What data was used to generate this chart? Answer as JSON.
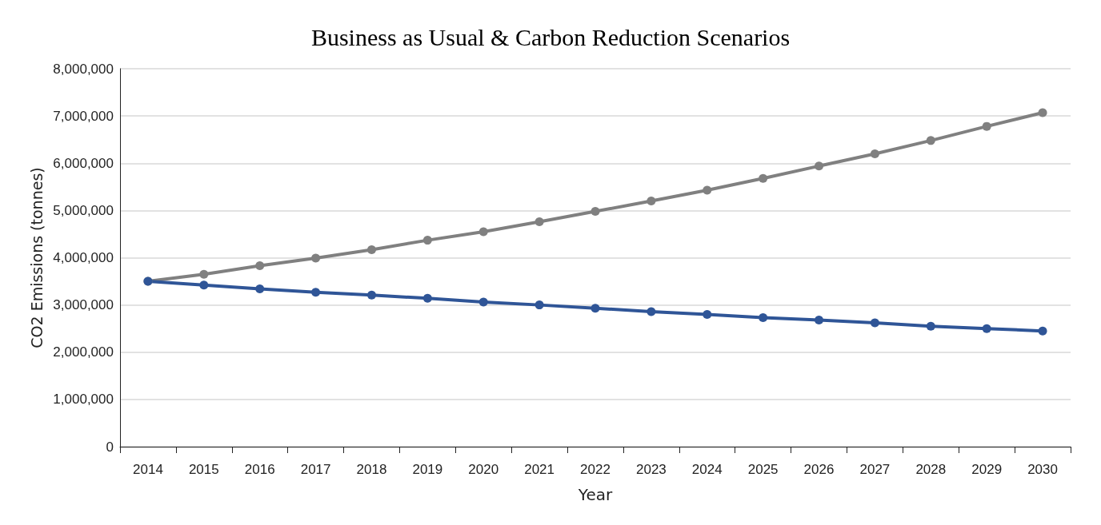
{
  "chart_data": {
    "type": "line",
    "title": "Business as Usual & Carbon Reduction Scenarios",
    "xlabel": "Year",
    "ylabel": "CO2 Emissions (tonnes)",
    "categories": [
      "2014",
      "2015",
      "2016",
      "2017",
      "2018",
      "2019",
      "2020",
      "2021",
      "2022",
      "2023",
      "2024",
      "2025",
      "2026",
      "2027",
      "2028",
      "2029",
      "2030"
    ],
    "series": [
      {
        "color": "#808080",
        "values": [
          3500000,
          3650000,
          3830000,
          3990000,
          4170000,
          4370000,
          4550000,
          4760000,
          4980000,
          5200000,
          5430000,
          5680000,
          5940000,
          6200000,
          6480000,
          6780000,
          7070000
        ]
      },
      {
        "color": "#2f5597",
        "values": [
          3500000,
          3420000,
          3340000,
          3270000,
          3210000,
          3140000,
          3060000,
          3000000,
          2930000,
          2860000,
          2800000,
          2730000,
          2680000,
          2620000,
          2550000,
          2500000,
          2450000
        ]
      }
    ],
    "ylim": [
      0,
      8000000
    ],
    "yticks": [
      0,
      {
        "value": 1000000,
        "label": "1,000,000"
      },
      {
        "value": 2000000,
        "label": "2,000,000"
      },
      {
        "value": 3000000,
        "label": "3,000,000"
      },
      {
        "value": 4000000,
        "label": "4,000,000"
      },
      {
        "value": 5000000,
        "label": "5,000,000"
      },
      {
        "value": 6000000,
        "label": "6,000,000"
      },
      {
        "value": 7000000,
        "label": "7,000,000"
      },
      {
        "value": 8000000,
        "label": "8,000,000"
      }
    ],
    "grid": "y",
    "marker": "circle",
    "line_style": "solid"
  }
}
